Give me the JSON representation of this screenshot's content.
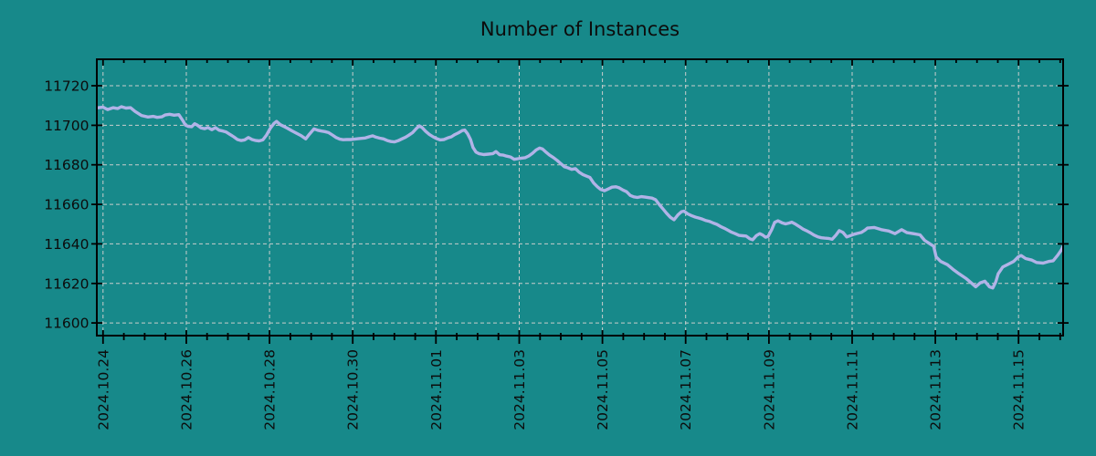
{
  "chart_data": {
    "type": "line",
    "title": "Number of Instances",
    "legend": "none",
    "grid": {
      "on": true,
      "style": "dashed"
    },
    "x_axis": {
      "unit": "date",
      "tick_labels": [
        "2024.10.24",
        "2024.10.26",
        "2024.10.28",
        "2024.10.30",
        "2024.11.01",
        "2024.11.03",
        "2024.11.05",
        "2024.11.07",
        "2024.11.09",
        "2024.11.11",
        "2024.11.13",
        "2024.11.15"
      ],
      "tick_day_offsets": [
        0,
        2,
        4,
        6,
        8,
        10,
        12,
        14,
        16,
        18,
        20,
        22
      ],
      "minor_tick_step_days": 0.5,
      "lim_days": [
        -0.15,
        23.07
      ],
      "label_rotation_deg": 90
    },
    "y_axis": {
      "tick_labels": [
        "11600",
        "11620",
        "11640",
        "11660",
        "11680",
        "11700",
        "11720"
      ],
      "tick_values": [
        11600,
        11620,
        11640,
        11660,
        11680,
        11700,
        11720
      ],
      "lim": [
        11593.6,
        11733.4
      ]
    },
    "series": [
      {
        "name": "instances",
        "color": "#b1b3e7",
        "x_days_from_2024_10_24": [
          -0.15,
          0.0,
          0.11,
          0.24,
          0.35,
          0.44,
          0.55,
          0.66,
          0.77,
          0.92,
          1.08,
          1.21,
          1.3,
          1.41,
          1.49,
          1.6,
          1.71,
          1.82,
          1.91,
          1.98,
          2.04,
          2.13,
          2.2,
          2.26,
          2.35,
          2.44,
          2.52,
          2.61,
          2.7,
          2.79,
          2.88,
          2.96,
          3.05,
          3.14,
          3.23,
          3.32,
          3.4,
          3.49,
          3.58,
          3.67,
          3.75,
          3.84,
          3.93,
          4.02,
          4.11,
          4.17,
          4.26,
          4.35,
          4.43,
          4.54,
          4.65,
          4.76,
          4.87,
          4.96,
          5.07,
          5.16,
          5.25,
          5.33,
          5.42,
          5.51,
          5.6,
          5.69,
          5.77,
          5.86,
          5.95,
          6.04,
          6.13,
          6.21,
          6.3,
          6.39,
          6.48,
          6.56,
          6.65,
          6.74,
          6.83,
          6.92,
          7.0,
          7.09,
          7.18,
          7.27,
          7.35,
          7.44,
          7.53,
          7.6,
          7.66,
          7.75,
          7.84,
          7.93,
          8.01,
          8.1,
          8.19,
          8.28,
          8.37,
          8.45,
          8.54,
          8.63,
          8.69,
          8.76,
          8.83,
          8.89,
          8.96,
          9.04,
          9.15,
          9.26,
          9.37,
          9.44,
          9.53,
          9.62,
          9.7,
          9.79,
          9.88,
          9.97,
          10.05,
          10.14,
          10.23,
          10.32,
          10.41,
          10.49,
          10.56,
          10.65,
          10.73,
          10.82,
          10.91,
          11.0,
          11.09,
          11.17,
          11.26,
          11.35,
          11.44,
          11.53,
          11.61,
          11.7,
          11.79,
          11.88,
          11.96,
          12.05,
          12.14,
          12.23,
          12.32,
          12.4,
          12.49,
          12.58,
          12.67,
          12.75,
          12.84,
          12.93,
          13.02,
          13.11,
          13.19,
          13.28,
          13.37,
          13.46,
          13.54,
          13.63,
          13.72,
          13.81,
          13.9,
          13.96,
          14.05,
          14.14,
          14.23,
          14.31,
          14.4,
          14.49,
          14.58,
          14.66,
          14.75,
          14.84,
          14.93,
          15.02,
          15.1,
          15.19,
          15.28,
          15.37,
          15.45,
          15.54,
          15.61,
          15.7,
          15.78,
          15.85,
          15.92,
          15.98,
          16.07,
          16.14,
          16.22,
          16.31,
          16.4,
          16.49,
          16.55,
          16.64,
          16.73,
          16.82,
          16.9,
          16.99,
          17.08,
          17.17,
          17.26,
          17.34,
          17.43,
          17.52,
          17.61,
          17.69,
          17.78,
          17.87,
          17.96,
          18.05,
          18.13,
          18.22,
          18.31,
          18.37,
          18.53,
          18.7,
          18.88,
          19.03,
          19.19,
          19.32,
          19.47,
          19.63,
          19.74,
          19.85,
          19.96,
          20.02,
          20.13,
          20.29,
          20.42,
          20.57,
          20.73,
          20.86,
          20.97,
          21.08,
          21.19,
          21.3,
          21.38,
          21.45,
          21.51,
          21.62,
          21.73,
          21.88,
          21.99,
          22.06,
          22.17,
          22.32,
          22.43,
          22.59,
          22.72,
          22.83,
          22.94,
          23.03,
          23.07
        ],
        "values": [
          11708.8,
          11709.2,
          11708.0,
          11708.9,
          11708.5,
          11709.4,
          11708.7,
          11708.9,
          11707.0,
          11705.0,
          11704.2,
          11704.5,
          11704.0,
          11704.3,
          11705.2,
          11705.6,
          11705.1,
          11705.4,
          11702.6,
          11700.1,
          11699.5,
          11699.3,
          11700.8,
          11700.2,
          11698.7,
          11698.3,
          11698.9,
          11697.8,
          11698.8,
          11697.5,
          11697.1,
          11696.6,
          11695.4,
          11694.2,
          11692.8,
          11692.3,
          11692.6,
          11693.8,
          11692.8,
          11692.3,
          11692.1,
          11692.6,
          11695.1,
          11698.5,
          11701.0,
          11702.0,
          11700.3,
          11699.4,
          11698.5,
          11697.2,
          11696.0,
          11694.8,
          11693.1,
          11695.5,
          11698.2,
          11697.5,
          11697.1,
          11696.8,
          11696.3,
          11695.1,
          11693.8,
          11693.0,
          11692.7,
          11692.8,
          11692.8,
          11693.0,
          11693.2,
          11693.4,
          11693.6,
          11694.2,
          11694.7,
          11694.0,
          11693.5,
          11693.1,
          11692.3,
          11691.8,
          11691.6,
          11692.2,
          11693.1,
          11694.0,
          11695.0,
          11696.3,
          11698.4,
          11699.7,
          11699.0,
          11697.0,
          11695.4,
          11694.2,
          11693.3,
          11692.6,
          11692.8,
          11693.6,
          11694.2,
          11695.3,
          11696.2,
          11697.3,
          11697.6,
          11695.7,
          11692.8,
          11688.8,
          11686.5,
          11685.6,
          11685.2,
          11685.4,
          11685.7,
          11686.7,
          11685.1,
          11684.9,
          11684.4,
          11684.0,
          11682.8,
          11683.1,
          11683.4,
          11683.6,
          11684.5,
          11685.9,
          11687.6,
          11688.5,
          11688.0,
          11686.3,
          11684.9,
          11683.7,
          11682.3,
          11680.6,
          11679.0,
          11678.5,
          11677.7,
          11678.1,
          11676.3,
          11675.1,
          11674.4,
          11673.6,
          11670.8,
          11668.9,
          11667.5,
          11666.9,
          11667.8,
          11668.7,
          11668.9,
          11668.4,
          11667.3,
          11666.4,
          11664.5,
          11663.8,
          11663.5,
          11663.9,
          11663.7,
          11663.4,
          11663.2,
          11662.3,
          11659.8,
          11657.6,
          11655.5,
          11653.5,
          11652.2,
          11654.6,
          11656.3,
          11656.6,
          11655.2,
          11654.3,
          11653.6,
          11653.1,
          11652.5,
          11651.8,
          11651.3,
          11650.6,
          11649.9,
          11648.8,
          11647.9,
          11646.9,
          11645.9,
          11645.2,
          11644.3,
          11644.1,
          11644.0,
          11642.6,
          11642.1,
          11644.2,
          11645.2,
          11644.5,
          11643.4,
          11643.8,
          11647.4,
          11650.9,
          11651.7,
          11650.7,
          11650.1,
          11650.6,
          11651.0,
          11650.0,
          11648.8,
          11647.5,
          11646.7,
          11645.7,
          11644.5,
          11643.6,
          11643.1,
          11642.9,
          11642.8,
          11642.3,
          11644.4,
          11646.7,
          11645.8,
          11643.5,
          11644.2,
          11644.9,
          11645.3,
          11645.8,
          11647.0,
          11648.0,
          11648.3,
          11647.2,
          11646.5,
          11645.2,
          11647.2,
          11645.7,
          11645.2,
          11644.6,
          11641.8,
          11640.3,
          11638.8,
          11633.4,
          11631.1,
          11629.5,
          11627.2,
          11624.9,
          11622.6,
          11620.3,
          11618.3,
          11620.3,
          11621.1,
          11618.3,
          11617.7,
          11620.7,
          11624.9,
          11628.3,
          11629.5,
          11631.1,
          11633.4,
          11634.1,
          11632.6,
          11631.8,
          11630.6,
          11630.3,
          11631.1,
          11631.5,
          11634.3,
          11637.0,
          11638.8
        ]
      }
    ]
  },
  "style": {
    "background_color": "#17898a",
    "grid_color": "#c9cdcc",
    "axis_color": "#000000",
    "text_color": "#0c0c0c",
    "line_color": "#b1b3e7"
  }
}
